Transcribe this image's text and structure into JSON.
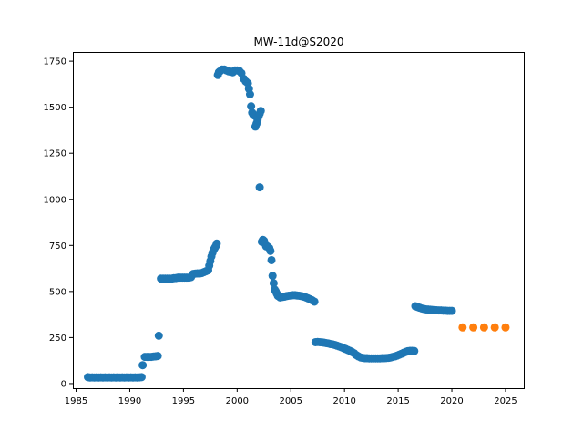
{
  "chart_data": {
    "type": "scatter",
    "title": "MW-11d@S2020",
    "xlabel": "",
    "ylabel": "",
    "xlim": [
      1984.7,
      2026.7
    ],
    "ylim": [
      -25,
      1800
    ],
    "x_ticks": [
      1985,
      1990,
      1995,
      2000,
      2005,
      2010,
      2015,
      2020,
      2025
    ],
    "y_ticks": [
      0,
      250,
      500,
      750,
      1000,
      1250,
      1500,
      1750
    ],
    "grid": false,
    "legend": "none",
    "series": [
      {
        "color": "#1f77b4",
        "points": [
          [
            1986.1,
            35
          ],
          [
            1986.3,
            33
          ],
          [
            1986.5,
            34
          ],
          [
            1986.7,
            33
          ],
          [
            1986.9,
            34
          ],
          [
            1987.1,
            33
          ],
          [
            1987.3,
            34
          ],
          [
            1987.5,
            33
          ],
          [
            1987.7,
            34
          ],
          [
            1987.9,
            33
          ],
          [
            1988.1,
            34
          ],
          [
            1988.3,
            33
          ],
          [
            1988.5,
            34
          ],
          [
            1988.7,
            33
          ],
          [
            1988.9,
            34
          ],
          [
            1989.1,
            33
          ],
          [
            1989.3,
            34
          ],
          [
            1989.5,
            33
          ],
          [
            1989.7,
            34
          ],
          [
            1989.9,
            33
          ],
          [
            1990.1,
            34
          ],
          [
            1990.3,
            33
          ],
          [
            1990.5,
            34
          ],
          [
            1990.7,
            33
          ],
          [
            1990.9,
            34
          ],
          [
            1991.1,
            35
          ],
          [
            1991.2,
            100
          ],
          [
            1991.4,
            145
          ],
          [
            1991.6,
            145
          ],
          [
            1991.8,
            145
          ],
          [
            1992.0,
            145
          ],
          [
            1992.2,
            147
          ],
          [
            1992.4,
            148
          ],
          [
            1992.6,
            150
          ],
          [
            1992.7,
            260
          ],
          [
            1992.9,
            570
          ],
          [
            1993.1,
            570
          ],
          [
            1993.3,
            570
          ],
          [
            1993.5,
            570
          ],
          [
            1993.7,
            570
          ],
          [
            1993.9,
            570
          ],
          [
            1994.1,
            572
          ],
          [
            1994.3,
            573
          ],
          [
            1994.5,
            575
          ],
          [
            1994.7,
            575
          ],
          [
            1994.9,
            575
          ],
          [
            1995.1,
            575
          ],
          [
            1995.3,
            575
          ],
          [
            1995.5,
            575
          ],
          [
            1995.7,
            578
          ],
          [
            1995.9,
            595
          ],
          [
            1996.1,
            597
          ],
          [
            1996.3,
            598
          ],
          [
            1996.5,
            598
          ],
          [
            1996.7,
            600
          ],
          [
            1996.9,
            605
          ],
          [
            1997.1,
            610
          ],
          [
            1997.3,
            615
          ],
          [
            1997.4,
            640
          ],
          [
            1997.5,
            665
          ],
          [
            1997.6,
            690
          ],
          [
            1997.7,
            710
          ],
          [
            1997.8,
            725
          ],
          [
            1997.9,
            735
          ],
          [
            1998.0,
            745
          ],
          [
            1998.1,
            760
          ],
          [
            1998.2,
            1675
          ],
          [
            1998.3,
            1690
          ],
          [
            1998.4,
            1695
          ],
          [
            1998.6,
            1705
          ],
          [
            1998.8,
            1705
          ],
          [
            1999.0,
            1700
          ],
          [
            1999.2,
            1695
          ],
          [
            1999.4,
            1693
          ],
          [
            1999.6,
            1690
          ],
          [
            1999.8,
            1700
          ],
          [
            2000.0,
            1700
          ],
          [
            2000.2,
            1697
          ],
          [
            2000.4,
            1685
          ],
          [
            2000.6,
            1655
          ],
          [
            2000.8,
            1640
          ],
          [
            2001.0,
            1630
          ],
          [
            2001.1,
            1600
          ],
          [
            2001.2,
            1570
          ],
          [
            2001.3,
            1505
          ],
          [
            2001.4,
            1470
          ],
          [
            2001.5,
            1460
          ],
          [
            2001.6,
            1455
          ],
          [
            2001.7,
            1395
          ],
          [
            2001.8,
            1410
          ],
          [
            2001.9,
            1430
          ],
          [
            2002.0,
            1450
          ],
          [
            2002.1,
            1465
          ],
          [
            2002.2,
            1480
          ],
          [
            2002.1,
            1065
          ],
          [
            2002.3,
            770
          ],
          [
            2002.4,
            780
          ],
          [
            2002.5,
            775
          ],
          [
            2002.6,
            760
          ],
          [
            2002.7,
            745
          ],
          [
            2002.8,
            745
          ],
          [
            2002.9,
            740
          ],
          [
            2003.0,
            735
          ],
          [
            2003.1,
            720
          ],
          [
            2003.2,
            670
          ],
          [
            2003.3,
            585
          ],
          [
            2003.4,
            545
          ],
          [
            2003.5,
            510
          ],
          [
            2003.6,
            500
          ],
          [
            2003.7,
            488
          ],
          [
            2003.8,
            476
          ],
          [
            2004.0,
            468
          ],
          [
            2004.2,
            470
          ],
          [
            2004.4,
            472
          ],
          [
            2004.6,
            475
          ],
          [
            2004.8,
            477
          ],
          [
            2005.0,
            478
          ],
          [
            2005.2,
            480
          ],
          [
            2005.4,
            480
          ],
          [
            2005.6,
            478
          ],
          [
            2005.8,
            477
          ],
          [
            2006.0,
            475
          ],
          [
            2006.2,
            472
          ],
          [
            2006.4,
            468
          ],
          [
            2006.6,
            463
          ],
          [
            2006.8,
            458
          ],
          [
            2007.0,
            452
          ],
          [
            2007.2,
            445
          ],
          [
            2007.3,
            225
          ],
          [
            2007.5,
            226
          ],
          [
            2007.7,
            225
          ],
          [
            2007.9,
            224
          ],
          [
            2008.1,
            222
          ],
          [
            2008.3,
            220
          ],
          [
            2008.5,
            218
          ],
          [
            2008.7,
            215
          ],
          [
            2008.9,
            213
          ],
          [
            2009.1,
            210
          ],
          [
            2009.3,
            206
          ],
          [
            2009.5,
            202
          ],
          [
            2009.7,
            198
          ],
          [
            2009.9,
            193
          ],
          [
            2010.1,
            188
          ],
          [
            2010.3,
            183
          ],
          [
            2010.5,
            178
          ],
          [
            2010.7,
            172
          ],
          [
            2010.9,
            165
          ],
          [
            2011.1,
            155
          ],
          [
            2011.3,
            148
          ],
          [
            2011.5,
            142
          ],
          [
            2011.7,
            140
          ],
          [
            2011.9,
            138
          ],
          [
            2012.1,
            138
          ],
          [
            2012.3,
            137
          ],
          [
            2012.5,
            137
          ],
          [
            2012.7,
            137
          ],
          [
            2012.9,
            137
          ],
          [
            2013.1,
            137
          ],
          [
            2013.3,
            137
          ],
          [
            2013.5,
            138
          ],
          [
            2013.7,
            138
          ],
          [
            2013.9,
            139
          ],
          [
            2014.1,
            140
          ],
          [
            2014.3,
            142
          ],
          [
            2014.5,
            145
          ],
          [
            2014.7,
            148
          ],
          [
            2014.9,
            152
          ],
          [
            2015.1,
            157
          ],
          [
            2015.3,
            162
          ],
          [
            2015.5,
            167
          ],
          [
            2015.7,
            172
          ],
          [
            2015.9,
            176
          ],
          [
            2016.1,
            178
          ],
          [
            2016.3,
            178
          ],
          [
            2016.5,
            177
          ],
          [
            2016.6,
            420
          ],
          [
            2016.8,
            416
          ],
          [
            2017.0,
            412
          ],
          [
            2017.2,
            408
          ],
          [
            2017.4,
            405
          ],
          [
            2017.6,
            403
          ],
          [
            2017.8,
            402
          ],
          [
            2018.0,
            401
          ],
          [
            2018.2,
            400
          ],
          [
            2018.4,
            399
          ],
          [
            2018.6,
            398
          ],
          [
            2018.8,
            397
          ],
          [
            2019.0,
            397
          ],
          [
            2019.2,
            396
          ],
          [
            2019.4,
            396
          ],
          [
            2019.6,
            395
          ],
          [
            2019.8,
            395
          ],
          [
            2020.0,
            395
          ]
        ]
      },
      {
        "color": "#ff7f0e",
        "points": [
          [
            2021.0,
            305
          ],
          [
            2022.0,
            305
          ],
          [
            2023.0,
            305
          ],
          [
            2024.0,
            305
          ],
          [
            2025.0,
            305
          ]
        ]
      }
    ]
  }
}
